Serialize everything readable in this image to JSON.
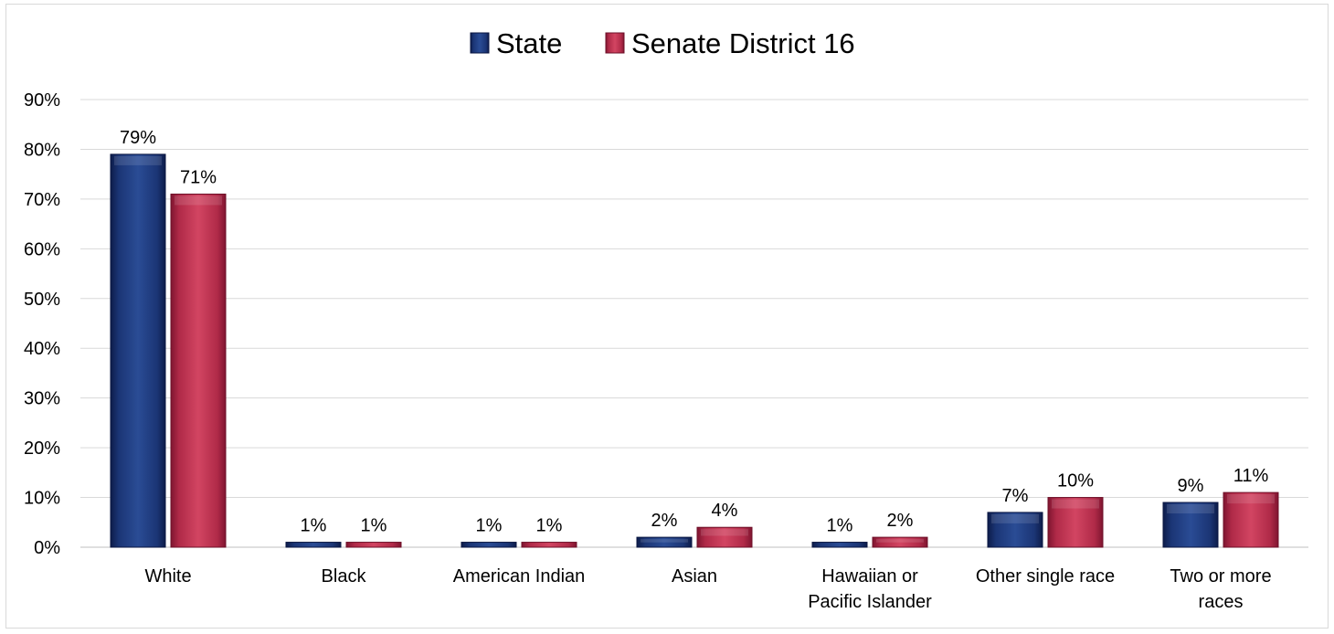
{
  "chart_data": {
    "type": "bar",
    "categories": [
      [
        "White"
      ],
      [
        "Black"
      ],
      [
        "American Indian"
      ],
      [
        "Asian"
      ],
      [
        "Hawaiian or",
        "Pacific Islander"
      ],
      [
        "Other single race"
      ],
      [
        "Two or more",
        "races"
      ]
    ],
    "series": [
      {
        "name": "State",
        "color": "#1f3a7a",
        "values": [
          79,
          1,
          1,
          2,
          1,
          7,
          9
        ],
        "labels": [
          "79%",
          "1%",
          "1%",
          "2%",
          "1%",
          "7%",
          "9%"
        ]
      },
      {
        "name": "Senate District 16",
        "color": "#c0304f",
        "values": [
          71,
          1,
          1,
          4,
          2,
          10,
          11
        ],
        "labels": [
          "71%",
          "1%",
          "1%",
          "4%",
          "2%",
          "10%",
          "11%"
        ]
      }
    ],
    "ylim": [
      0,
      90
    ],
    "yticks": [
      "0%",
      "10%",
      "20%",
      "30%",
      "40%",
      "50%",
      "60%",
      "70%",
      "80%",
      "90%"
    ],
    "grid": true,
    "legend_position": "top-center"
  }
}
